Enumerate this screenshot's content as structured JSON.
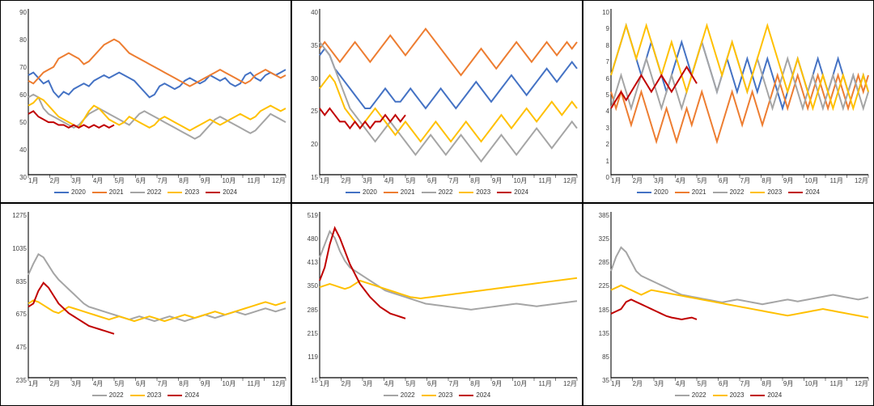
{
  "global": {
    "colors": {
      "2020": "#4472c4",
      "2021": "#ed7d31",
      "2022": "#a5a5a5",
      "2023": "#ffc000",
      "2024": "#c00000"
    },
    "line_width": 2,
    "background_color": "#ffffff",
    "axis_color": "#000000",
    "tick_font_size": 8,
    "legend_font_size": 8,
    "x_categories": [
      "1月",
      "2月",
      "3月",
      "4月",
      "5月",
      "6月",
      "7月",
      "8月",
      "9月",
      "10月",
      "11月",
      "12月"
    ]
  },
  "charts": [
    {
      "id": "c1",
      "type": "line",
      "ylim": [
        30,
        90
      ],
      "ytick_step": 10,
      "legend_series": [
        "2020",
        "2021",
        "2022",
        "2023",
        "2024"
      ],
      "series": {
        "2020": [
          66,
          67,
          65,
          63,
          64,
          60,
          58,
          60,
          59,
          61,
          62,
          63,
          62,
          64,
          65,
          66,
          65,
          66,
          67,
          66,
          65,
          64,
          62,
          60,
          58,
          59,
          62,
          63,
          62,
          61,
          62,
          64,
          65,
          64,
          63,
          64,
          66,
          65,
          64,
          65,
          63,
          62,
          63,
          66,
          67,
          65,
          64,
          66,
          67,
          66,
          67,
          68
        ],
        "2021": [
          64,
          63,
          65,
          67,
          68,
          69,
          72,
          73,
          74,
          73,
          72,
          70,
          71,
          73,
          75,
          77,
          78,
          79,
          78,
          76,
          74,
          73,
          72,
          71,
          70,
          69,
          68,
          67,
          66,
          65,
          64,
          63,
          62,
          63,
          64,
          65,
          66,
          67,
          68,
          67,
          66,
          65,
          64,
          63,
          64,
          66,
          67,
          68,
          67,
          66,
          65,
          66
        ],
        "2022": [
          58,
          59,
          58,
          54,
          52,
          51,
          50,
          49,
          48,
          47,
          48,
          50,
          52,
          53,
          54,
          53,
          52,
          51,
          50,
          49,
          48,
          50,
          52,
          53,
          52,
          51,
          50,
          49,
          48,
          47,
          46,
          45,
          44,
          43,
          44,
          46,
          48,
          50,
          51,
          50,
          49,
          48,
          47,
          46,
          45,
          46,
          48,
          50,
          52,
          51,
          50,
          49
        ],
        "2023": [
          55,
          56,
          58,
          57,
          55,
          53,
          51,
          50,
          49,
          48,
          47,
          50,
          53,
          55,
          54,
          52,
          50,
          49,
          48,
          49,
          51,
          50,
          49,
          48,
          47,
          48,
          50,
          51,
          50,
          49,
          48,
          47,
          46,
          47,
          48,
          49,
          50,
          49,
          48,
          49,
          50,
          51,
          52,
          51,
          50,
          51,
          53,
          54,
          55,
          54,
          53,
          54
        ],
        "2024": [
          52,
          53,
          51,
          50,
          49,
          49,
          48,
          48,
          47,
          48,
          47,
          48,
          47,
          48,
          47,
          48,
          47,
          48
        ]
      }
    },
    {
      "id": "c2",
      "type": "line",
      "ylim": [
        15,
        40
      ],
      "ytick_step": 5,
      "legend_series": [
        "2020",
        "2021",
        "2022",
        "2023",
        "2024"
      ],
      "series": {
        "2020": [
          33,
          34,
          33,
          31,
          30,
          29,
          28,
          27,
          26,
          25,
          25,
          26,
          27,
          28,
          27,
          26,
          26,
          27,
          28,
          27,
          26,
          25,
          26,
          27,
          28,
          27,
          26,
          25,
          26,
          27,
          28,
          29,
          28,
          27,
          26,
          27,
          28,
          29,
          30,
          29,
          28,
          27,
          28,
          29,
          30,
          31,
          30,
          29,
          30,
          31,
          32,
          31
        ],
        "2021": [
          34,
          35,
          34,
          33,
          32,
          33,
          34,
          35,
          34,
          33,
          32,
          33,
          34,
          35,
          36,
          35,
          34,
          33,
          34,
          35,
          36,
          37,
          36,
          35,
          34,
          33,
          32,
          31,
          30,
          31,
          32,
          33,
          34,
          33,
          32,
          31,
          32,
          33,
          34,
          35,
          34,
          33,
          32,
          33,
          34,
          35,
          34,
          33,
          34,
          35,
          34,
          35
        ],
        "2022": [
          35,
          34,
          33,
          31,
          29,
          27,
          25,
          24,
          23,
          22,
          21,
          20,
          21,
          22,
          23,
          22,
          21,
          20,
          19,
          18,
          19,
          20,
          21,
          20,
          19,
          18,
          19,
          20,
          21,
          20,
          19,
          18,
          17,
          18,
          19,
          20,
          21,
          20,
          19,
          18,
          19,
          20,
          21,
          22,
          21,
          20,
          19,
          20,
          21,
          22,
          23,
          22
        ],
        "2023": [
          28,
          29,
          30,
          29,
          27,
          25,
          24,
          23,
          22,
          23,
          24,
          25,
          24,
          23,
          22,
          21,
          22,
          23,
          22,
          21,
          20,
          21,
          22,
          23,
          22,
          21,
          20,
          21,
          22,
          23,
          22,
          21,
          20,
          21,
          22,
          23,
          24,
          23,
          22,
          23,
          24,
          25,
          24,
          23,
          24,
          25,
          26,
          25,
          24,
          25,
          26,
          25
        ],
        "2024": [
          25,
          24,
          25,
          24,
          23,
          23,
          22,
          23,
          22,
          23,
          22,
          23,
          23,
          24,
          23,
          24,
          23,
          24
        ]
      }
    },
    {
      "id": "c3",
      "type": "line",
      "ylim": [
        0,
        10
      ],
      "ytick_step": 1,
      "legend_series": [
        "2020",
        "2021",
        "2022",
        "2023",
        "2024"
      ],
      "series": {
        "2020": [
          6,
          7,
          8,
          9,
          8,
          7,
          6,
          7,
          8,
          7,
          6,
          5,
          6,
          7,
          8,
          7,
          6,
          7,
          8,
          7,
          6,
          5,
          6,
          7,
          6,
          5,
          6,
          7,
          6,
          5,
          6,
          7,
          6,
          5,
          4,
          5,
          6,
          7,
          6,
          5,
          6,
          7,
          6,
          5,
          6,
          7,
          6,
          5,
          6,
          5,
          6,
          5
        ],
        "2021": [
          5,
          4,
          5,
          4,
          3,
          4,
          5,
          4,
          3,
          2,
          3,
          4,
          3,
          2,
          3,
          4,
          3,
          4,
          5,
          4,
          3,
          2,
          3,
          4,
          5,
          4,
          3,
          4,
          5,
          4,
          3,
          4,
          5,
          6,
          5,
          4,
          5,
          6,
          5,
          4,
          5,
          6,
          5,
          4,
          5,
          6,
          5,
          4,
          5,
          6,
          5,
          6
        ],
        "2022": [
          4,
          5,
          6,
          5,
          4,
          5,
          6,
          7,
          6,
          5,
          4,
          5,
          6,
          5,
          4,
          5,
          6,
          7,
          8,
          7,
          6,
          5,
          6,
          7,
          8,
          7,
          6,
          5,
          6,
          7,
          6,
          5,
          4,
          5,
          6,
          7,
          6,
          5,
          4,
          5,
          6,
          5,
          4,
          5,
          6,
          5,
          4,
          5,
          6,
          5,
          4,
          5
        ],
        "2023": [
          6,
          7,
          8,
          9,
          8,
          7,
          8,
          9,
          8,
          7,
          6,
          7,
          8,
          7,
          6,
          5,
          6,
          7,
          8,
          9,
          8,
          7,
          6,
          7,
          8,
          7,
          6,
          5,
          6,
          7,
          8,
          9,
          8,
          7,
          6,
          5,
          6,
          7,
          6,
          5,
          4,
          5,
          6,
          5,
          4,
          5,
          6,
          5,
          4,
          5,
          6,
          5
        ],
        "2024": [
          4,
          4.5,
          5,
          4.5,
          5,
          5.5,
          6,
          5.5,
          5,
          5.5,
          6,
          5.5,
          5,
          5.5,
          6,
          6.5,
          6,
          5.5
        ]
      }
    },
    {
      "id": "c4",
      "type": "line",
      "ylim": [
        235,
        1275
      ],
      "yticks": [
        235,
        475,
        675,
        835,
        1035,
        1275
      ],
      "legend_series": [
        "2022",
        "2023",
        "2024"
      ],
      "series": {
        "2022": [
          880,
          950,
          1010,
          990,
          940,
          890,
          850,
          820,
          790,
          760,
          730,
          700,
          680,
          670,
          660,
          650,
          640,
          630,
          620,
          610,
          600,
          610,
          620,
          610,
          600,
          590,
          600,
          610,
          620,
          610,
          600,
          590,
          600,
          610,
          620,
          630,
          620,
          610,
          620,
          630,
          640,
          650,
          640,
          630,
          640,
          650,
          660,
          670,
          660,
          650,
          660,
          670
        ],
        "2023": [
          700,
          720,
          710,
          690,
          670,
          650,
          640,
          660,
          680,
          670,
          660,
          650,
          640,
          630,
          620,
          610,
          600,
          610,
          620,
          610,
          600,
          590,
          600,
          610,
          620,
          610,
          600,
          590,
          600,
          610,
          620,
          630,
          620,
          610,
          620,
          630,
          640,
          650,
          640,
          630,
          640,
          650,
          660,
          670,
          680,
          690,
          700,
          710,
          700,
          690,
          700,
          710
        ],
        "2024": [
          680,
          700,
          780,
          830,
          800,
          750,
          700,
          670,
          640,
          620,
          600,
          580,
          560,
          550,
          540,
          530,
          520,
          510
        ]
      }
    },
    {
      "id": "c5",
      "type": "line",
      "ylim": [
        15,
        519
      ],
      "yticks": [
        15,
        119,
        215,
        285,
        350,
        413,
        480,
        519
      ],
      "legend_series": [
        "2022",
        "2023",
        "2024"
      ],
      "series": {
        "2022": [
          380,
          420,
          460,
          440,
          400,
          370,
          350,
          340,
          330,
          320,
          310,
          300,
          290,
          280,
          275,
          270,
          265,
          260,
          255,
          250,
          245,
          240,
          238,
          236,
          234,
          232,
          230,
          228,
          226,
          224,
          222,
          224,
          226,
          228,
          230,
          232,
          234,
          236,
          238,
          240,
          238,
          236,
          234,
          232,
          234,
          236,
          238,
          240,
          242,
          244,
          246,
          248
        ],
        "2023": [
          290,
          295,
          300,
          295,
          290,
          285,
          290,
          300,
          310,
          305,
          300,
          295,
          290,
          285,
          280,
          275,
          270,
          265,
          260,
          258,
          256,
          258,
          260,
          262,
          264,
          266,
          268,
          270,
          272,
          274,
          276,
          278,
          280,
          282,
          284,
          286,
          288,
          290,
          292,
          294,
          296,
          298,
          300,
          302,
          304,
          306,
          308,
          310,
          312,
          314,
          316,
          318
        ],
        "2024": [
          310,
          350,
          420,
          470,
          440,
          400,
          360,
          330,
          300,
          280,
          260,
          245,
          230,
          220,
          210,
          205,
          200,
          195
        ]
      }
    },
    {
      "id": "c6",
      "type": "line",
      "ylim": [
        35,
        385
      ],
      "yticks": [
        35,
        85,
        135,
        185,
        225,
        285,
        325,
        385
      ],
      "legend_series": [
        "2022",
        "2023",
        "2024"
      ],
      "series": {
        "2022": [
          260,
          290,
          310,
          300,
          280,
          260,
          250,
          245,
          240,
          235,
          230,
          225,
          220,
          215,
          210,
          208,
          206,
          204,
          202,
          200,
          198,
          196,
          194,
          196,
          198,
          200,
          198,
          196,
          194,
          192,
          190,
          192,
          194,
          196,
          198,
          200,
          198,
          196,
          198,
          200,
          202,
          204,
          206,
          208,
          210,
          208,
          206,
          204,
          202,
          200,
          202,
          205
        ],
        "2023": [
          220,
          225,
          230,
          225,
          220,
          215,
          210,
          215,
          220,
          218,
          216,
          214,
          212,
          210,
          208,
          206,
          204,
          202,
          200,
          198,
          196,
          194,
          192,
          190,
          188,
          186,
          184,
          182,
          180,
          178,
          176,
          174,
          172,
          170,
          168,
          166,
          168,
          170,
          172,
          174,
          176,
          178,
          180,
          178,
          176,
          174,
          172,
          170,
          168,
          166,
          164,
          162
        ],
        "2024": [
          170,
          175,
          180,
          195,
          200,
          195,
          190,
          185,
          180,
          175,
          170,
          165,
          162,
          160,
          158,
          160,
          162,
          158
        ]
      }
    }
  ]
}
